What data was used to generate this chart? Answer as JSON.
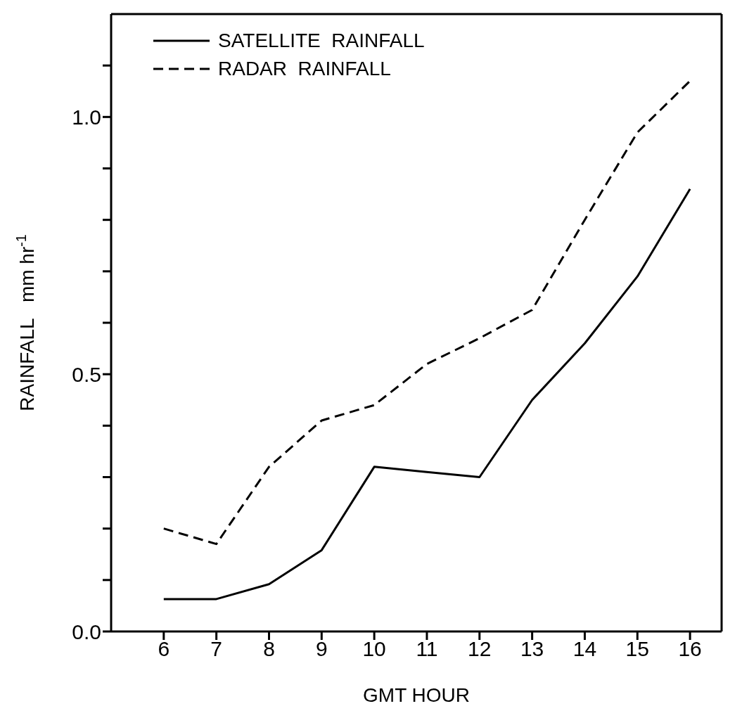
{
  "chart_data": {
    "type": "line",
    "xlabel": "GMT   HOUR",
    "ylabel": "RAINFALL   mm hr$^{-1}$",
    "x": [
      6,
      7,
      8,
      9,
      10,
      11,
      12,
      13,
      14,
      15,
      16
    ],
    "series": [
      {
        "name": "SATELLITE  RAINFALL",
        "color": "#000000",
        "line_style": "solid",
        "values": [
          0.063,
          0.063,
          0.092,
          0.158,
          0.32,
          0.31,
          0.3,
          0.45,
          0.56,
          0.69,
          0.86
        ]
      },
      {
        "name": "RADAR  RAINFALL",
        "color": "#000000",
        "line_style": "dashed",
        "values": [
          0.2,
          0.17,
          0.32,
          0.41,
          0.44,
          0.52,
          0.57,
          0.625,
          0.8,
          0.97,
          1.07
        ]
      }
    ],
    "xlim": [
      5,
      16.6
    ],
    "xticks": [
      6,
      7,
      8,
      9,
      10,
      11,
      12,
      13,
      14,
      15,
      16
    ],
    "ylim": [
      0,
      1.2
    ],
    "yticks": [
      {
        "value": 0,
        "label": "0.0"
      },
      {
        "value": 0.1,
        "label": null
      },
      {
        "value": 0.2,
        "label": null
      },
      {
        "value": 0.3,
        "label": null
      },
      {
        "value": 0.4,
        "label": null
      },
      0.5,
      {
        "value": 0.6,
        "label": null
      },
      {
        "value": 0.7,
        "label": null
      },
      {
        "value": 0.8,
        "label": null
      },
      {
        "value": 0.9,
        "label": null
      },
      {
        "value": 1,
        "label": "1.0"
      },
      {
        "value": 1.1,
        "label": null
      }
    ],
    "grid": false,
    "legend": "top left",
    "marker": "none"
  }
}
